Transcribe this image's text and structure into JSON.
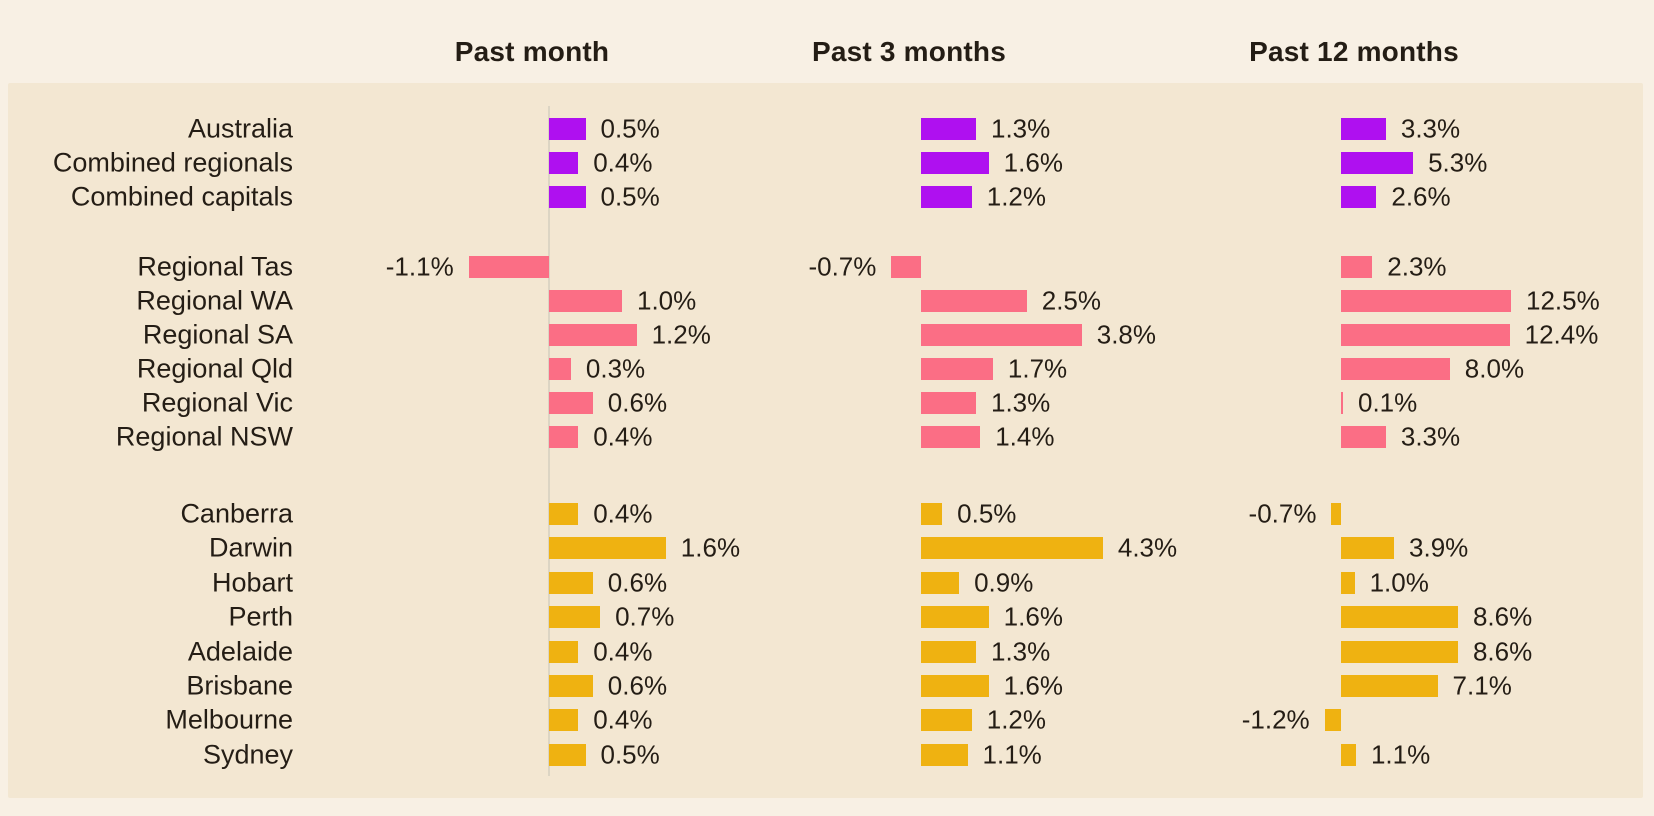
{
  "chart_data": {
    "type": "bar",
    "orientation": "horizontal",
    "title": "",
    "value_format": "percent",
    "legend": "none",
    "gridlines": "none",
    "columns": [
      "Past month",
      "Past 3 months",
      "Past 12 months"
    ],
    "groups": [
      {
        "name": "national",
        "color": "#AF10F0",
        "rows": [
          {
            "label": "Australia",
            "values": [
              0.5,
              1.3,
              3.3
            ],
            "display": [
              "0.5%",
              "1.3%",
              "3.3%"
            ]
          },
          {
            "label": "Combined regionals",
            "values": [
              0.4,
              1.6,
              5.3
            ],
            "display": [
              "0.4%",
              "1.6%",
              "5.3%"
            ]
          },
          {
            "label": "Combined capitals",
            "values": [
              0.5,
              1.2,
              2.6
            ],
            "display": [
              "0.5%",
              "1.2%",
              "2.6%"
            ]
          }
        ]
      },
      {
        "name": "regional",
        "color": "#FB6E85",
        "rows": [
          {
            "label": "Regional Tas",
            "values": [
              -1.1,
              -0.7,
              2.3
            ],
            "display": [
              "-1.1%",
              "-0.7%",
              "2.3%"
            ]
          },
          {
            "label": "Regional WA",
            "values": [
              1.0,
              2.5,
              12.5
            ],
            "display": [
              "1.0%",
              "2.5%",
              "12.5%"
            ]
          },
          {
            "label": "Regional SA",
            "values": [
              1.2,
              3.8,
              12.4
            ],
            "display": [
              "1.2%",
              "3.8%",
              "12.4%"
            ]
          },
          {
            "label": "Regional Qld",
            "values": [
              0.3,
              1.7,
              8.0
            ],
            "display": [
              "0.3%",
              "1.7%",
              "8.0%"
            ]
          },
          {
            "label": "Regional Vic",
            "values": [
              0.6,
              1.3,
              0.1
            ],
            "display": [
              "0.6%",
              "1.3%",
              "0.1%"
            ]
          },
          {
            "label": "Regional NSW",
            "values": [
              0.4,
              1.4,
              3.3
            ],
            "display": [
              "0.4%",
              "1.4%",
              "3.3%"
            ]
          }
        ]
      },
      {
        "name": "capitals",
        "color": "#EFB211",
        "rows": [
          {
            "label": "Canberra",
            "values": [
              0.4,
              0.5,
              -0.7
            ],
            "display": [
              "0.4%",
              "0.5%",
              "-0.7%"
            ]
          },
          {
            "label": "Darwin",
            "values": [
              1.6,
              4.3,
              3.9
            ],
            "display": [
              "1.6%",
              "4.3%",
              "3.9%"
            ]
          },
          {
            "label": "Hobart",
            "values": [
              0.6,
              0.9,
              1.0
            ],
            "display": [
              "0.6%",
              "0.9%",
              "1.0%"
            ]
          },
          {
            "label": "Perth",
            "values": [
              0.7,
              1.6,
              8.6
            ],
            "display": [
              "0.7%",
              "1.6%",
              "8.6%"
            ]
          },
          {
            "label": "Adelaide",
            "values": [
              0.4,
              1.3,
              8.6
            ],
            "display": [
              "0.4%",
              "1.3%",
              "8.6%"
            ]
          },
          {
            "label": "Brisbane",
            "values": [
              0.6,
              1.6,
              7.1
            ],
            "display": [
              "0.6%",
              "1.6%",
              "7.1%"
            ]
          },
          {
            "label": "Melbourne",
            "values": [
              0.4,
              1.2,
              -1.2
            ],
            "display": [
              "0.4%",
              "1.2%",
              "-1.2%"
            ]
          },
          {
            "label": "Sydney",
            "values": [
              0.5,
              1.1,
              1.1
            ],
            "display": [
              "0.5%",
              "1.1%",
              "1.1%"
            ]
          }
        ]
      }
    ],
    "theme": {
      "background": "#f8f0e4",
      "panel_background": "#f3e7d2",
      "axis_line": "#dcd5c4",
      "text": "#241d15"
    }
  }
}
